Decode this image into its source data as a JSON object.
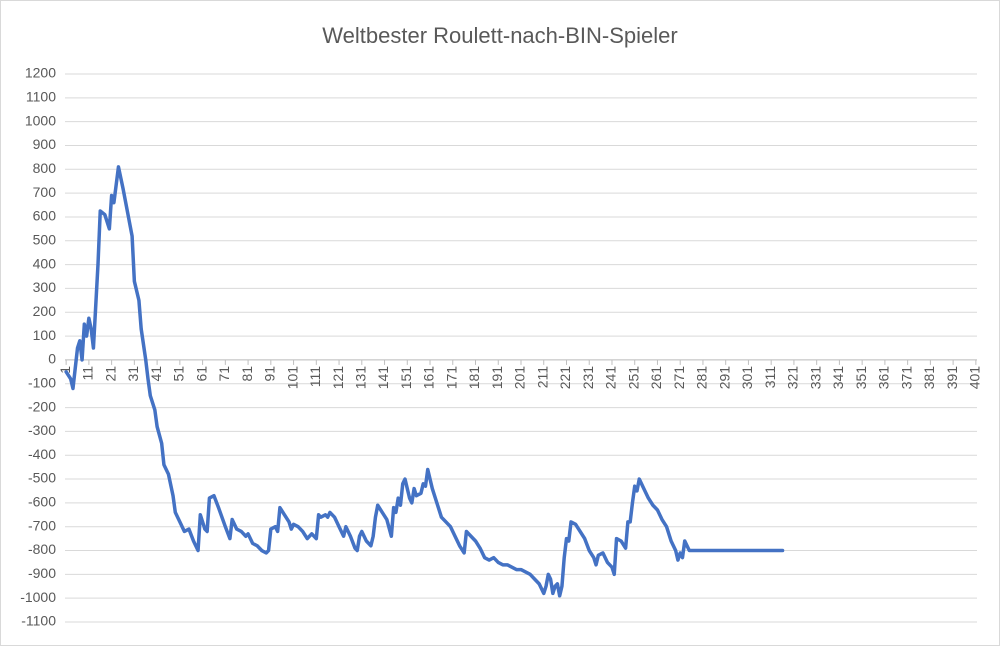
{
  "chart_data": {
    "type": "line",
    "title": "Weltbester Roulett-nach-BIN-Spieler",
    "series": [
      {
        "name": "",
        "color": "#4472c4",
        "x": [
          1,
          3,
          4,
          6,
          7,
          8,
          9,
          10,
          11,
          12,
          13,
          15,
          16,
          18,
          20,
          21,
          22,
          24,
          26,
          28,
          30,
          31,
          33,
          34,
          36,
          37,
          38,
          40,
          41,
          43,
          44,
          46,
          48,
          49,
          51,
          53,
          55,
          57,
          59,
          60,
          62,
          63,
          64,
          66,
          68,
          71,
          73,
          74,
          76,
          78,
          80,
          81,
          83,
          85,
          87,
          89,
          90,
          91,
          93,
          94,
          95,
          97,
          99,
          100,
          101,
          103,
          105,
          107,
          109,
          111,
          112,
          113,
          115,
          116,
          117,
          119,
          121,
          123,
          124,
          126,
          128,
          129,
          130,
          131,
          133,
          135,
          136,
          137,
          138,
          140,
          142,
          144,
          145,
          146,
          147,
          148,
          149,
          150,
          151,
          152,
          153,
          154,
          155,
          157,
          158,
          159,
          160,
          162,
          164,
          166,
          168,
          170,
          172,
          174,
          176,
          177,
          179,
          181,
          183,
          185,
          187,
          189,
          191,
          193,
          195,
          197,
          199,
          201,
          203,
          205,
          207,
          209,
          211,
          212,
          213,
          214,
          215,
          216,
          217,
          218,
          219,
          220,
          221,
          222,
          223,
          225,
          227,
          229,
          231,
          233,
          234,
          235,
          237,
          239,
          241,
          242,
          243,
          245,
          247,
          248,
          249,
          250,
          251,
          252,
          253,
          255,
          257,
          259,
          261,
          263,
          265,
          267,
          269,
          270,
          271,
          272,
          273,
          274,
          275,
          276,
          316
        ],
        "values": [
          -50,
          -80,
          -120,
          50,
          80,
          0,
          150,
          100,
          175,
          130,
          50,
          400,
          625,
          610,
          550,
          690,
          660,
          810,
          720,
          620,
          520,
          330,
          250,
          130,
          0,
          -80,
          -150,
          -210,
          -280,
          -350,
          -440,
          -480,
          -570,
          -640,
          -680,
          -720,
          -710,
          -760,
          -800,
          -650,
          -710,
          -720,
          -580,
          -570,
          -620,
          -700,
          -750,
          -670,
          -710,
          -720,
          -740,
          -730,
          -770,
          -780,
          -800,
          -810,
          -800,
          -710,
          -700,
          -720,
          -620,
          -650,
          -680,
          -710,
          -690,
          -700,
          -720,
          -750,
          -730,
          -750,
          -650,
          -660,
          -650,
          -660,
          -640,
          -660,
          -700,
          -740,
          -700,
          -740,
          -790,
          -800,
          -740,
          -720,
          -760,
          -780,
          -740,
          -660,
          -610,
          -640,
          -670,
          -740,
          -620,
          -640,
          -580,
          -610,
          -520,
          -500,
          -540,
          -580,
          -600,
          -540,
          -570,
          -560,
          -520,
          -530,
          -460,
          -540,
          -600,
          -660,
          -680,
          -700,
          -740,
          -780,
          -810,
          -720,
          -740,
          -760,
          -790,
          -830,
          -840,
          -830,
          -850,
          -860,
          -860,
          -870,
          -880,
          -880,
          -890,
          -900,
          -920,
          -940,
          -980,
          -950,
          -900,
          -920,
          -980,
          -950,
          -940,
          -990,
          -950,
          -830,
          -750,
          -760,
          -680,
          -690,
          -720,
          -750,
          -800,
          -830,
          -860,
          -820,
          -810,
          -850,
          -870,
          -900,
          -750,
          -760,
          -790,
          -680,
          -680,
          -600,
          -530,
          -550,
          -500,
          -540,
          -580,
          -610,
          -630,
          -670,
          -700,
          -760,
          -800,
          -840,
          -810,
          -830,
          -760,
          -780,
          -800,
          -800,
          -800
        ]
      }
    ],
    "xlim": [
      0.5,
      401.5
    ],
    "xticks": [
      1,
      11,
      21,
      31,
      41,
      51,
      61,
      71,
      81,
      91,
      101,
      111,
      121,
      131,
      141,
      151,
      161,
      171,
      181,
      191,
      201,
      211,
      221,
      231,
      241,
      251,
      261,
      271,
      281,
      291,
      301,
      311,
      321,
      331,
      341,
      351,
      361,
      371,
      381,
      391,
      401
    ],
    "ylim": [
      -1100,
      1200
    ],
    "yticks": [
      -1100,
      -1000,
      -900,
      -800,
      -700,
      -600,
      -500,
      -400,
      -300,
      -200,
      -100,
      0,
      100,
      200,
      300,
      400,
      500,
      600,
      700,
      800,
      900,
      1000,
      1100,
      1200
    ],
    "grid": true
  }
}
